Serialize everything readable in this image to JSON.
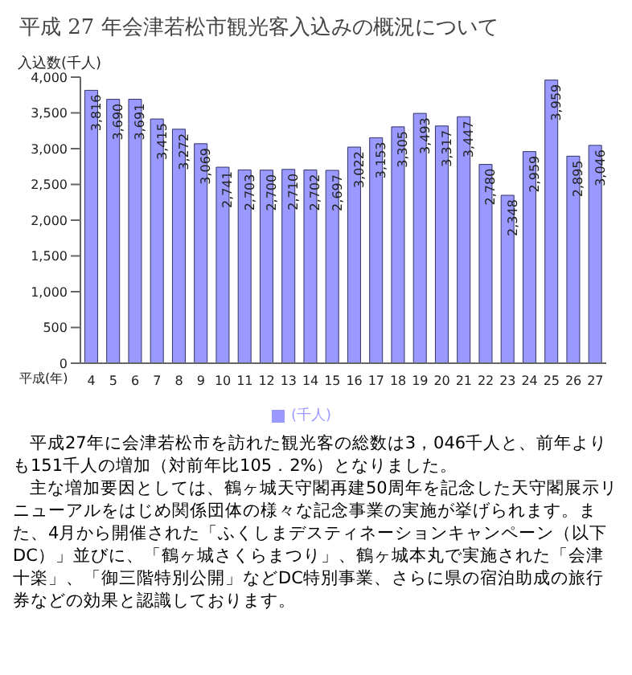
{
  "chart_data": {
    "type": "bar",
    "title": "平成 27 年会津若松市観光客入込みの概況について",
    "xlabel": "平成(年)",
    "ylabel": "入込数(千人)",
    "categories": [
      "4",
      "5",
      "6",
      "7",
      "8",
      "9",
      "10",
      "11",
      "12",
      "13",
      "14",
      "15",
      "16",
      "17",
      "18",
      "19",
      "20",
      "21",
      "22",
      "23",
      "24",
      "25",
      "26",
      "27"
    ],
    "series": [
      {
        "name": "(千人)",
        "color": "#9999ff",
        "values": [
          3816,
          3690,
          3691,
          3415,
          3272,
          3069,
          2741,
          2703,
          2700,
          2710,
          2702,
          2697,
          3022,
          3153,
          3305,
          3493,
          3317,
          3447,
          2780,
          2348,
          2959,
          3959,
          2895,
          3046
        ],
        "value_labels": [
          "3,816",
          "3,690",
          "3,691",
          "3,415",
          "3,272",
          "3,069",
          "2,741",
          "2,703",
          "2,700",
          "2,710",
          "2,702",
          "2,697",
          "3,022",
          "3,153",
          "3,305",
          "3,493",
          "3,317",
          "3,447",
          "2,780",
          "2,348",
          "2,959",
          "3,959",
          "2,895",
          "3,046"
        ]
      }
    ],
    "ylim": [
      0,
      4000
    ],
    "yticks": [
      0,
      500,
      {
        "value": 1000,
        "label": "1,000"
      },
      {
        "value": 1500,
        "label": "1,500"
      },
      {
        "value": 2000,
        "label": "2,000"
      },
      {
        "value": 2500,
        "label": "2,500"
      },
      {
        "value": 3000,
        "label": "3,000"
      },
      {
        "value": 3500,
        "label": "3,500"
      },
      {
        "value": 4000,
        "label": "4,000"
      }
    ],
    "grid": false,
    "legend": "bottom",
    "annotations": [
      "平成27年に会津若松市を訪れた観光客の総数は3，046千人と、前年よりも151千人の増加（対前年比105．2%）となりました。",
      "主な増加要因としては、鶴ヶ城天守閣再建50周年を記念した天守閣展示リニューアルをはじめ関係団体の様々な記念事業の実施が挙げられます。また、4月から開催された「ふくしまデスティネーションキャンペーン（以下DC）」並びに、「鶴ヶ城さくらまつり」、鶴ヶ城本丸で実施された「会津十楽」、「御三階特別公開」などDC特別事業、さらに県の宿泊助成の旅行券などの効果と認識しております。"
    ]
  }
}
